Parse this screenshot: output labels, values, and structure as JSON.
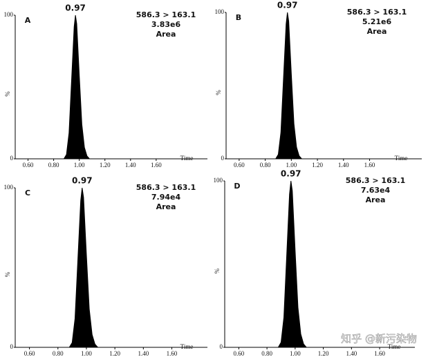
{
  "chart_data": [
    {
      "type": "area",
      "label": "A",
      "peak_label": "0.97",
      "annotations": [
        "586.3 > 163.1",
        "3.83e6",
        "Area"
      ],
      "xlabel": "Time",
      "ylabel": "%",
      "color": "#000000",
      "x": [
        0.88,
        0.9,
        0.92,
        0.94,
        0.96,
        0.97,
        0.98,
        1.0,
        1.02,
        1.04,
        1.06,
        1.08
      ],
      "values": [
        0,
        3,
        18,
        55,
        92,
        100,
        94,
        58,
        24,
        8,
        2,
        0
      ],
      "xlim": [
        0.5,
        2.0
      ],
      "ylim": [
        0,
        100
      ],
      "yticks": [
        0,
        100
      ],
      "xticks": [
        {
          "value": 0.6,
          "label": "0.60"
        },
        {
          "value": 0.8,
          "label": "0.80"
        },
        {
          "value": 1.0,
          "label": "1.00"
        },
        {
          "value": 1.2,
          "label": "1.20"
        },
        {
          "value": 1.4,
          "label": "1.40"
        },
        {
          "value": 1.6,
          "label": "1.60"
        }
      ]
    },
    {
      "type": "area",
      "label": "B",
      "peak_label": "0.97",
      "annotations": [
        "586.3 > 163.1",
        "5.21e6",
        "Area"
      ],
      "xlabel": "Time",
      "ylabel": "%",
      "color": "#000000",
      "x": [
        0.88,
        0.9,
        0.92,
        0.94,
        0.96,
        0.97,
        0.98,
        1.0,
        1.02,
        1.04,
        1.06,
        1.08
      ],
      "values": [
        0,
        3,
        18,
        55,
        92,
        100,
        94,
        58,
        24,
        8,
        2,
        0
      ],
      "xlim": [
        0.5,
        2.0
      ],
      "ylim": [
        0,
        100
      ],
      "yticks": [
        0,
        100
      ],
      "xticks": [
        {
          "value": 0.6,
          "label": "0.60"
        },
        {
          "value": 0.8,
          "label": "0.80"
        },
        {
          "value": 1.0,
          "label": "1.00"
        },
        {
          "value": 1.2,
          "label": "1.20"
        },
        {
          "value": 1.4,
          "label": "1.40"
        },
        {
          "value": 1.6,
          "label": "1.60"
        }
      ]
    },
    {
      "type": "area",
      "label": "C",
      "peak_label": "0.97",
      "annotations": [
        "586.3 > 163.1",
        "7.94e4",
        "Area"
      ],
      "xlabel": "Time",
      "ylabel": "%",
      "color": "#000000",
      "x": [
        0.88,
        0.9,
        0.92,
        0.94,
        0.96,
        0.97,
        0.98,
        1.0,
        1.02,
        1.04,
        1.06,
        1.08
      ],
      "values": [
        0,
        3,
        18,
        55,
        92,
        100,
        94,
        58,
        24,
        8,
        2,
        0
      ],
      "xlim": [
        0.5,
        1.85
      ],
      "ylim": [
        0,
        100
      ],
      "yticks": [
        0,
        100
      ],
      "xticks": [
        {
          "value": 0.6,
          "label": "0.60"
        },
        {
          "value": 0.8,
          "label": "0.80"
        },
        {
          "value": 1.0,
          "label": "1.00"
        },
        {
          "value": 1.2,
          "label": "1.20"
        },
        {
          "value": 1.4,
          "label": "1.40"
        },
        {
          "value": 1.6,
          "label": "1.60"
        }
      ]
    },
    {
      "type": "area",
      "label": "D",
      "peak_label": "0.97",
      "annotations": [
        "586.3 > 163.1",
        "7.63e4",
        "Area"
      ],
      "xlabel": "Time",
      "ylabel": "%",
      "color": "#000000",
      "x": [
        0.88,
        0.9,
        0.92,
        0.94,
        0.96,
        0.97,
        0.98,
        1.0,
        1.02,
        1.04,
        1.06,
        1.08
      ],
      "values": [
        0,
        3,
        18,
        55,
        92,
        100,
        94,
        58,
        24,
        8,
        2,
        0
      ],
      "xlim": [
        0.5,
        1.85
      ],
      "ylim": [
        0,
        100
      ],
      "yticks": [
        0,
        100
      ],
      "xticks": [
        {
          "value": 0.6,
          "label": "0.60"
        },
        {
          "value": 0.8,
          "label": "0.80"
        },
        {
          "value": 1.0,
          "label": "1.00"
        },
        {
          "value": 1.2,
          "label": "1.20"
        },
        {
          "value": 1.4,
          "label": "1.40"
        },
        {
          "value": 1.6,
          "label": "1.60"
        }
      ]
    }
  ],
  "watermark": "知乎 @新污染物"
}
